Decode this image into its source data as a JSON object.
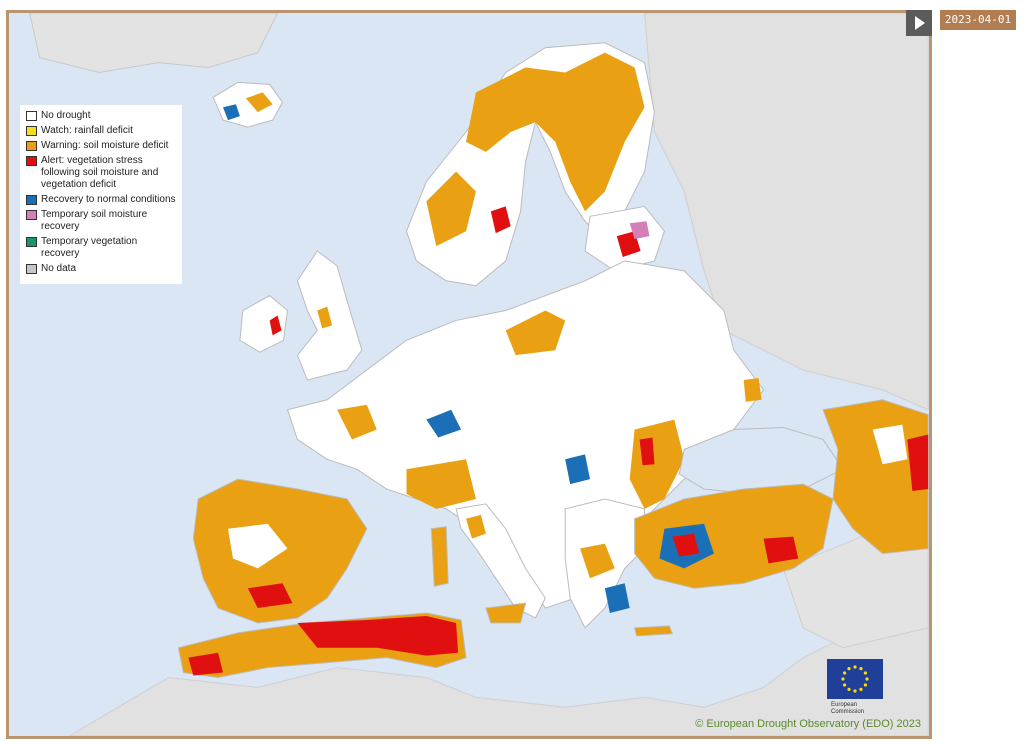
{
  "legend": {
    "items": [
      {
        "label": "No drought",
        "color": "#ffffff"
      },
      {
        "label": "Watch: rainfall deficit",
        "color": "#f2e01c"
      },
      {
        "label": "Warning: soil moisture deficit",
        "color": "#e9a012"
      },
      {
        "label": "Alert: vegetation stress following soil moisture and vegetation deficit",
        "color": "#e01010"
      },
      {
        "label": "Recovery to normal conditions",
        "color": "#1a6fb6"
      },
      {
        "label": "Temporary soil moisture recovery",
        "color": "#d47fb8"
      },
      {
        "label": "Temporary vegetation recovery",
        "color": "#16966a"
      },
      {
        "label": "No data",
        "color": "#c6c6c6"
      }
    ]
  },
  "credit": "© European Drought Observatory (EDO) 2023",
  "eu_logo": {
    "line1": "European",
    "line2": "Commission"
  },
  "controls": {
    "play_icon": "play-icon",
    "date": "2023-04-01"
  },
  "colors": {
    "sea": "#dbe6f5",
    "land_outside": "#e1e1e1",
    "land": "#ffffff",
    "frame": "#b99572",
    "badge": "#b27d50"
  }
}
